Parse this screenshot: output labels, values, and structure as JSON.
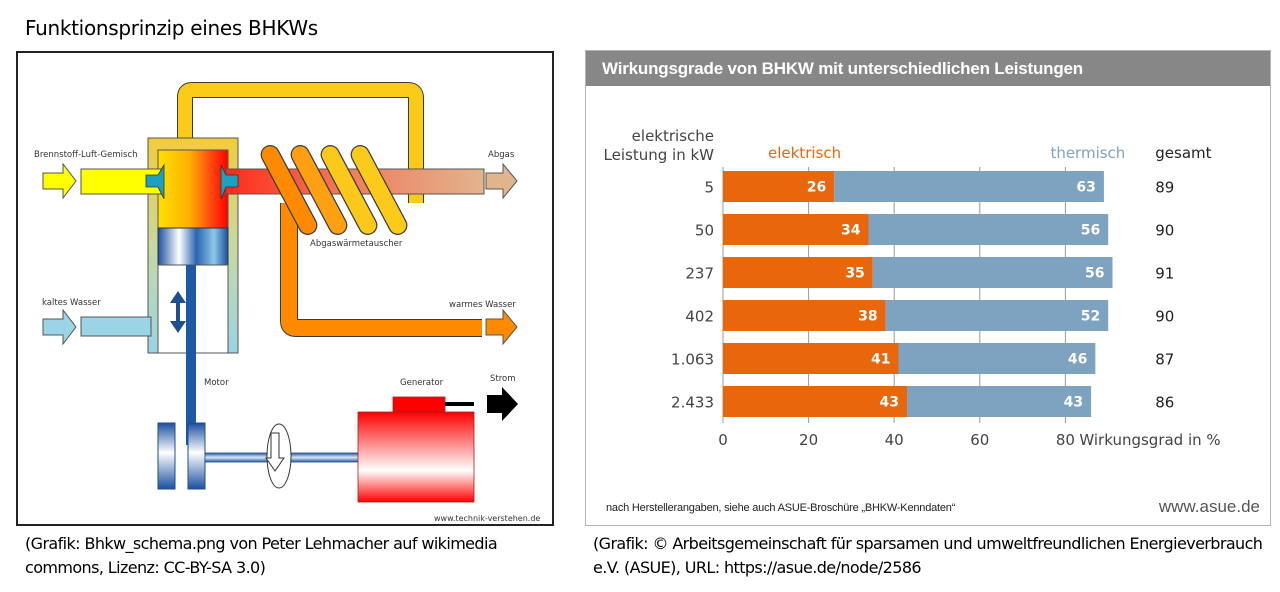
{
  "page_title": "Funktionsprinzip eines BHKWs",
  "diagram": {
    "labels": {
      "fuel_mix": "Brennstoff-Luft-Gemisch",
      "exhaust": "Abgas",
      "heat_exchanger": "Abgaswärmetauscher",
      "cold_water": "kaltes Wasser",
      "warm_water": "warmes Wasser",
      "motor": "Motor",
      "generator": "Generator",
      "power": "Strom",
      "watermark": "www.technik-verstehen.de"
    },
    "colors": {
      "fuel": "#ffff00",
      "exhaust_hot": "#ff2a1a",
      "exhaust_cool": "#e2b48e",
      "coolant_loop": "#fccb1a",
      "warm_water": "#ff8a00",
      "cold_water": "#9ad4e6",
      "piston": "#1c5aa6",
      "generator": "#ff0000"
    }
  },
  "caption_left": "(Grafik: Bhkw_schema.png von Peter Lehmacher auf wikimedia commons, Lizenz: CC-BY-SA 3.0)",
  "caption_right": "(Grafik: © Arbeitsgemeinschaft für sparsamen und umweltfreundlichen Energieverbrauch e.V. (ASUE), URL: https://asue.de/node/2586",
  "chart_data": {
    "type": "bar",
    "stacked": true,
    "orientation": "horizontal",
    "title": "Wirkungsgrade von BHKW mit unterschiedlichen Leistungen",
    "ylabel": "elektrische Leistung in kW",
    "xlabel": "Wirkungsgrad in %",
    "categories": [
      "5",
      "50",
      "237",
      "402",
      "1.063",
      "2.433"
    ],
    "series": [
      {
        "name": "elektrisch",
        "color": "#e8670b",
        "values": [
          26,
          34,
          35,
          38,
          41,
          43
        ]
      },
      {
        "name": "thermisch",
        "color": "#7ea3c1",
        "values": [
          63,
          56,
          56,
          52,
          46,
          43
        ]
      }
    ],
    "totals_label": "gesamt",
    "totals": [
      89,
      90,
      91,
      90,
      87,
      86
    ],
    "xlim": [
      0,
      100
    ],
    "xticks": [
      0,
      20,
      40,
      60,
      80
    ],
    "grid": true,
    "legend_position": "top",
    "footnote": "nach Herstellerangaben, siehe auch ASUE-Broschüre „BHKW-Kenndaten“",
    "source_url": "www.asue.de"
  }
}
